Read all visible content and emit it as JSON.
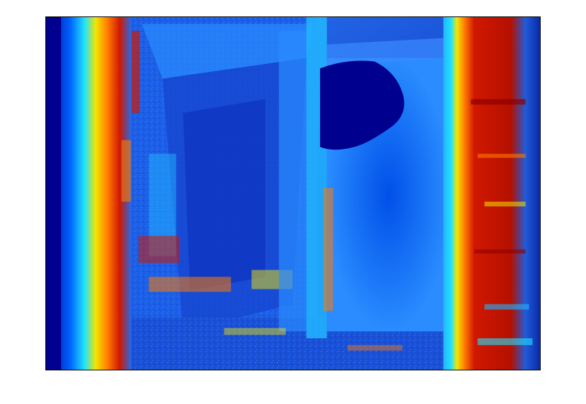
{
  "figure": {
    "colormap": "jet",
    "colors": {
      "dark_blue": "#00008f",
      "blue": "#0033dd",
      "mid_blue": "#1f6cf0",
      "light_blue": "#22b6ff",
      "cyan": "#1fe3ff",
      "yellow": "#f4e600",
      "orange": "#ff7a00",
      "red": "#d11800",
      "dark_red": "#8f0000"
    }
  }
}
